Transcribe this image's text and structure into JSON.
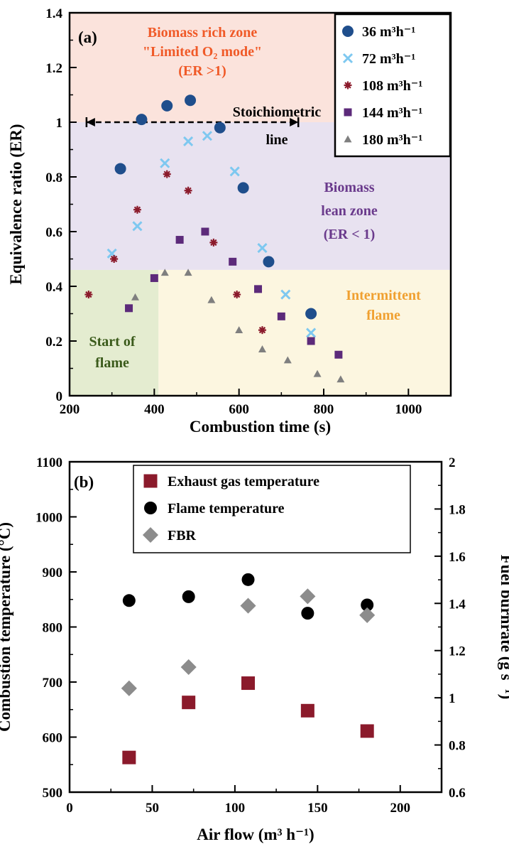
{
  "chart_data": [
    {
      "type": "scatter",
      "panel_label": "(a)",
      "xlabel": "Combustion time (s)",
      "ylabel": "Equivalence ratio (ER)",
      "xlim": [
        200,
        1100
      ],
      "ylim": [
        0,
        1.4
      ],
      "xticks": [
        200,
        400,
        600,
        800,
        1000
      ],
      "yticks": [
        0,
        0.2,
        0.4,
        0.6,
        0.8,
        1,
        1.2,
        1.4
      ],
      "ytick_labels": [
        "0",
        "0.2",
        "0.4",
        "0.6",
        "0.8",
        "1",
        "1.2",
        "1.4"
      ],
      "legend_position": "top-right",
      "grid": false,
      "zones": [
        {
          "label_lines": [
            "Biomass rich zone",
            "\"Limited O₂ mode\"",
            "(ER >1)"
          ],
          "color": "#fbe3dc",
          "text_color": "#f05a28",
          "x": [
            200,
            1100
          ],
          "y": [
            1.0,
            1.4
          ]
        },
        {
          "label_lines": [
            "Biomass",
            "lean zone",
            "(ER < 1)"
          ],
          "color": "#e8e2f0",
          "text_color": "#6a3a8c",
          "x": [
            200,
            1100
          ],
          "y": [
            0.46,
            1.0
          ]
        },
        {
          "label_lines": [
            "Start of",
            "flame"
          ],
          "color": "#e4ecd0",
          "text_color": "#3a5a1a",
          "x": [
            200,
            410
          ],
          "y": [
            0,
            0.46
          ]
        },
        {
          "label_lines": [
            "Intermittent",
            "flame"
          ],
          "color": "#fcf6e0",
          "text_color": "#f0a030",
          "x": [
            410,
            1100
          ],
          "y": [
            0,
            0.46
          ]
        }
      ],
      "annotation": {
        "label_lines": [
          "Stoichiometric",
          "line"
        ],
        "x_range": [
          240,
          740
        ],
        "y": 1.0
      },
      "series": [
        {
          "name": "36 m³h⁻¹",
          "marker": "circle",
          "color": "#1f4e8c",
          "x": [
            320,
            370,
            430,
            485,
            555,
            610,
            670,
            770
          ],
          "y": [
            0.83,
            1.01,
            1.06,
            1.08,
            0.98,
            0.76,
            0.49,
            0.3
          ]
        },
        {
          "name": "72 m³h⁻¹",
          "marker": "x",
          "color": "#7ec8f0",
          "x": [
            300,
            360,
            425,
            480,
            525,
            590,
            655,
            710,
            770
          ],
          "y": [
            0.52,
            0.62,
            0.85,
            0.93,
            0.95,
            0.82,
            0.54,
            0.37,
            0.23
          ]
        },
        {
          "name": "108 m³h⁻¹",
          "marker": "star",
          "color": "#8b1a2b",
          "x": [
            245,
            305,
            360,
            430,
            480,
            540,
            595,
            655
          ],
          "y": [
            0.37,
            0.5,
            0.68,
            0.81,
            0.75,
            0.56,
            0.37,
            0.24
          ]
        },
        {
          "name": "144 m³h⁻¹",
          "marker": "square",
          "color": "#5c2a7a",
          "x": [
            340,
            400,
            460,
            520,
            585,
            645,
            700,
            770,
            835
          ],
          "y": [
            0.32,
            0.43,
            0.57,
            0.6,
            0.49,
            0.39,
            0.29,
            0.2,
            0.15
          ]
        },
        {
          "name": "180 m³h⁻¹",
          "marker": "triangle",
          "color": "#7f7f7f",
          "x": [
            355,
            425,
            480,
            535,
            600,
            655,
            715,
            785,
            840
          ],
          "y": [
            0.36,
            0.45,
            0.45,
            0.35,
            0.24,
            0.17,
            0.13,
            0.08,
            0.06
          ]
        }
      ]
    },
    {
      "type": "scatter",
      "panel_label": "(b)",
      "xlabel": "Air flow (m³ h⁻¹)",
      "ylabel": "Combustion temperature (°C)",
      "y2label": "Fuel burnrate (g s⁻¹)",
      "xlim": [
        0,
        225
      ],
      "ylim": [
        500,
        1100
      ],
      "y2lim": [
        0.6,
        2.0
      ],
      "xticks": [
        0,
        50,
        100,
        150,
        200
      ],
      "yticks": [
        500,
        600,
        700,
        800,
        900,
        1000,
        1100
      ],
      "y2ticks": [
        0.6,
        0.8,
        1,
        1.2,
        1.4,
        1.6,
        1.8,
        2
      ],
      "y2tick_labels": [
        "0.6",
        "0.8",
        "1",
        "1.2",
        "1.4",
        "1.6",
        "1.8",
        "2"
      ],
      "legend_position": "top-center",
      "grid": false,
      "series": [
        {
          "name": "Exhaust gas temperature",
          "marker": "square",
          "color": "#8b1a2b",
          "axis": "left",
          "x": [
            36,
            72,
            108,
            144,
            180
          ],
          "y": [
            563,
            663,
            698,
            648,
            611
          ]
        },
        {
          "name": "Flame temperature",
          "marker": "circle",
          "color": "#000000",
          "axis": "left",
          "x": [
            36,
            72,
            108,
            144,
            180
          ],
          "y": [
            848,
            855,
            886,
            825,
            840
          ]
        },
        {
          "name": "FBR",
          "marker": "diamond",
          "color": "#8c8c8c",
          "axis": "right",
          "x": [
            36,
            72,
            108,
            144,
            180
          ],
          "y": [
            1.04,
            1.13,
            1.39,
            1.43,
            1.35
          ]
        }
      ]
    }
  ]
}
